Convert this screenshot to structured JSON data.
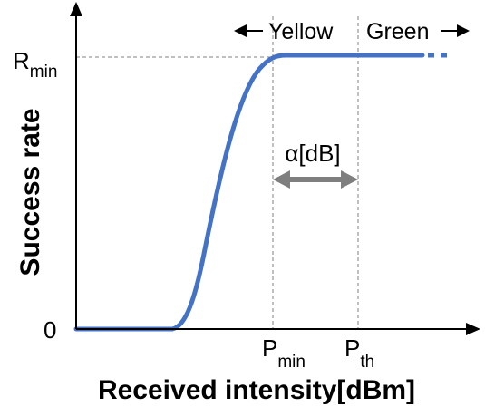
{
  "diagram": {
    "y_axis_title": "Success rate",
    "x_axis_title": "Received intensity[dBm]",
    "y_tick_top": {
      "main": "R",
      "sub": "min"
    },
    "y_tick_zero": "0",
    "x_tick_pmin": {
      "main": "P",
      "sub": "min"
    },
    "x_tick_pth": {
      "main": "P",
      "sub": "th"
    },
    "zone_yellow": "Yellow",
    "zone_green": "Green",
    "alpha_label": "α[dB]",
    "colors": {
      "curve": "#4472c4",
      "alpha_arrow": "#7f7f7f",
      "guides": "#808080",
      "axes": "#000000"
    }
  }
}
